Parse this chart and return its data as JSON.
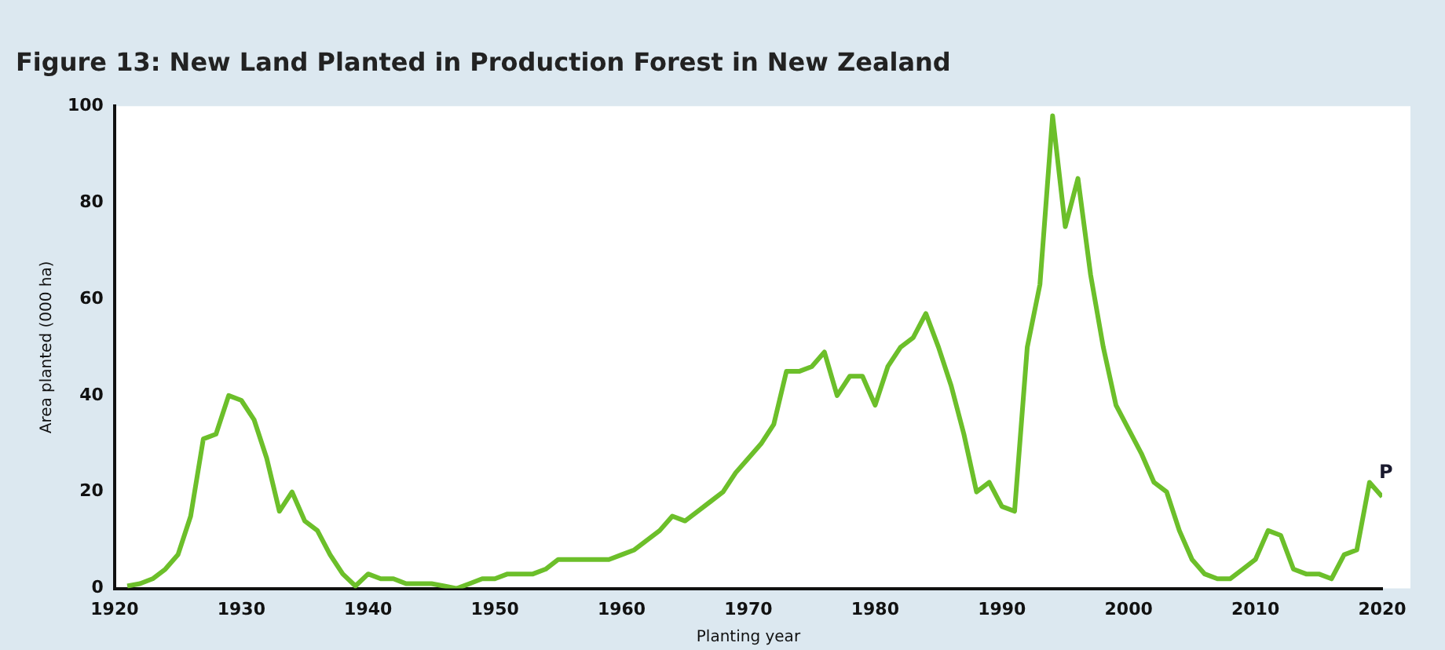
{
  "chart_data": {
    "type": "line",
    "title": "Figure 13: New Land Planted in Production Forest in New Zealand",
    "xlabel": "Planting year",
    "ylabel": "Area planted (000 ha)",
    "x": [
      1921,
      1922,
      1923,
      1924,
      1925,
      1926,
      1927,
      1928,
      1929,
      1930,
      1931,
      1932,
      1933,
      1934,
      1935,
      1936,
      1937,
      1938,
      1939,
      1940,
      1941,
      1942,
      1943,
      1944,
      1945,
      1946,
      1947,
      1948,
      1949,
      1950,
      1951,
      1952,
      1953,
      1954,
      1955,
      1956,
      1957,
      1958,
      1959,
      1960,
      1961,
      1962,
      1963,
      1964,
      1965,
      1966,
      1967,
      1968,
      1969,
      1970,
      1971,
      1972,
      1973,
      1974,
      1975,
      1976,
      1977,
      1978,
      1979,
      1980,
      1981,
      1982,
      1983,
      1984,
      1985,
      1986,
      1987,
      1988,
      1989,
      1990,
      1991,
      1992,
      1993,
      1994,
      1995,
      1996,
      1997,
      1998,
      1999,
      2000,
      2001,
      2002,
      2003,
      2004,
      2005,
      2006,
      2007,
      2008,
      2009,
      2010,
      2011,
      2012,
      2013,
      2014,
      2015,
      2016,
      2017,
      2018,
      2019,
      2020
    ],
    "series": [
      {
        "color": "#6cbf2a",
        "values": [
          0.5,
          1,
          2,
          4,
          7,
          15,
          31,
          32,
          40,
          39,
          35,
          27,
          16,
          20,
          14,
          12,
          7,
          3,
          0.5,
          3,
          2,
          2,
          1,
          1,
          1,
          0.5,
          0,
          1,
          2,
          2,
          3,
          3,
          3,
          4,
          6,
          6,
          6,
          6,
          6,
          7,
          8,
          10,
          12,
          15,
          14,
          16,
          18,
          20,
          24,
          27,
          30,
          34,
          45,
          45,
          46,
          49,
          40,
          44,
          44,
          38,
          46,
          50,
          52,
          57,
          50,
          42,
          32,
          20,
          22,
          17,
          16,
          50,
          63,
          98,
          75,
          85,
          65,
          50,
          38,
          33,
          28,
          22,
          20,
          12,
          6,
          3,
          2,
          2,
          4,
          6,
          12,
          11,
          4,
          3,
          3,
          2,
          7,
          8,
          22,
          19
        ]
      }
    ],
    "xlim": [
      1920,
      2020
    ],
    "xticks": [
      1920,
      1930,
      1940,
      1950,
      1960,
      1970,
      1980,
      1990,
      2000,
      2010,
      2020
    ],
    "ylim": [
      0,
      100
    ],
    "yticks": [
      0,
      20,
      40,
      60,
      80,
      100
    ],
    "grid": false,
    "legend": false,
    "marker": "none",
    "line_style": "solid",
    "annotations": [
      {
        "text": "P",
        "x": 2020,
        "y": 19
      }
    ]
  }
}
